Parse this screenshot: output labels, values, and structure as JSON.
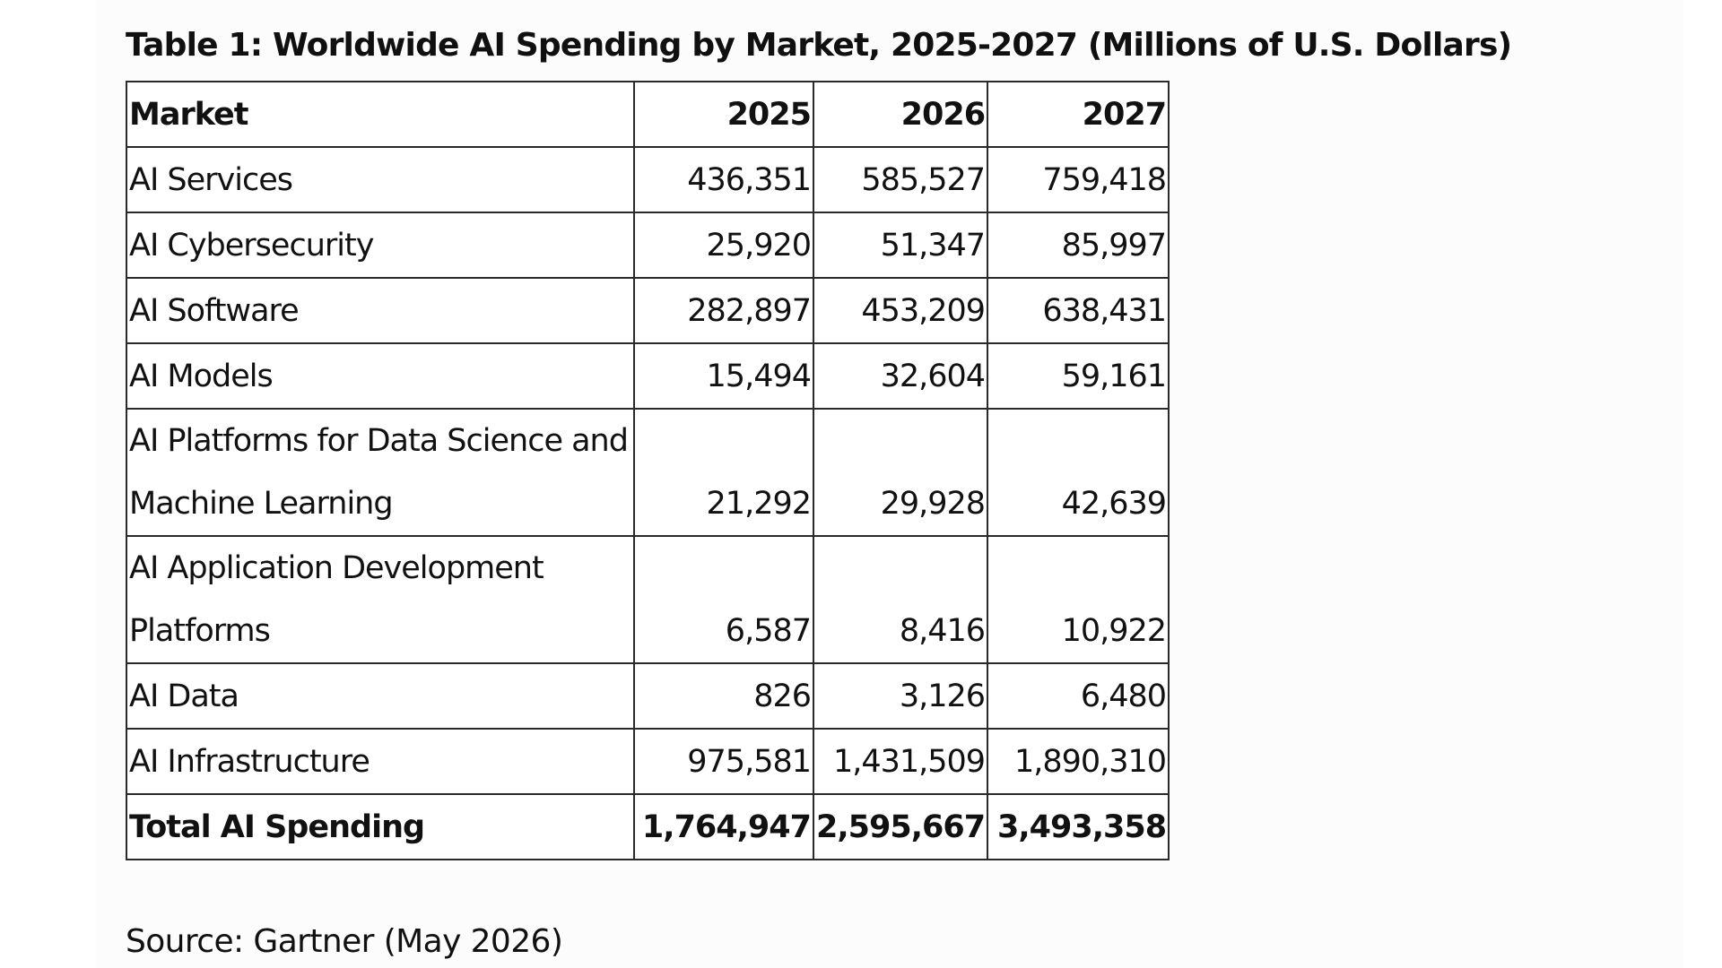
{
  "table": {
    "title": "Table 1: Worldwide AI Spending by Market, 2025-2027 (Millions of U.S. Dollars)",
    "headers": [
      "Market",
      "2025",
      "2026",
      "2027"
    ],
    "rows": [
      {
        "market": "AI Services",
        "y2025": "436,351",
        "y2026": "585,527",
        "y2027": "759,418"
      },
      {
        "market": "AI Cybersecurity",
        "y2025": "25,920",
        "y2026": "51,347",
        "y2027": "85,997"
      },
      {
        "market": "AI Software",
        "y2025": "282,897",
        "y2026": "453,209",
        "y2027": "638,431"
      },
      {
        "market": "AI Models",
        "y2025": "15,494",
        "y2026": "32,604",
        "y2027": "59,161"
      },
      {
        "market": "AI Platforms for Data Science and Machine Learning",
        "y2025": "21,292",
        "y2026": "29,928",
        "y2027": "42,639"
      },
      {
        "market": "AI Application Development Platforms",
        "y2025": "6,587",
        "y2026": "8,416",
        "y2027": "10,922"
      },
      {
        "market": "AI Data",
        "y2025": "826",
        "y2026": "3,126",
        "y2027": "6,480"
      },
      {
        "market": "AI Infrastructure",
        "y2025": "975,581",
        "y2026": "1,431,509",
        "y2027": "1,890,310"
      }
    ],
    "total": {
      "market": "Total AI Spending",
      "y2025": "1,764,947",
      "y2026": "2,595,667",
      "y2027": "3,493,358"
    }
  },
  "source": "Source: Gartner (May 2026)"
}
